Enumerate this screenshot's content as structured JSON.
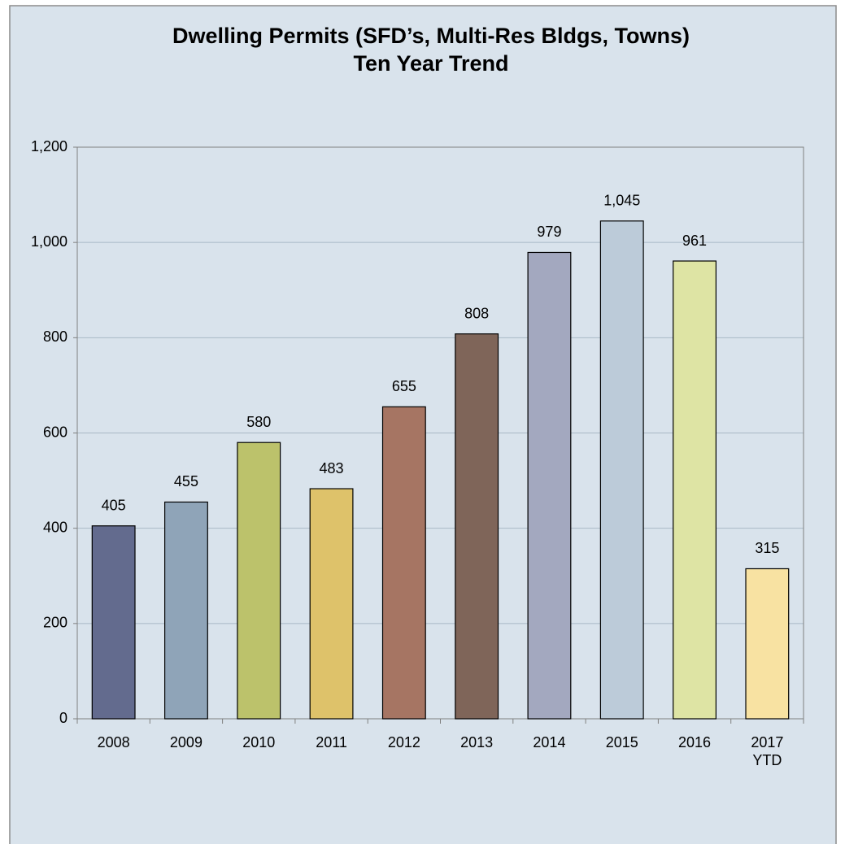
{
  "chart_data": {
    "type": "bar",
    "title": "Dwelling Permits (SFD’s, Multi-Res Bldgs, Towns)",
    "subtitle": "Ten Year Trend",
    "categories": [
      "2008",
      "2009",
      "2010",
      "2011",
      "2012",
      "2013",
      "2014",
      "2015",
      "2016",
      "2017 YTD"
    ],
    "values": [
      405,
      455,
      580,
      483,
      655,
      808,
      979,
      1045,
      961,
      315
    ],
    "value_labels": [
      "405",
      "455",
      "580",
      "483",
      "655",
      "808",
      "979",
      "1,045",
      "961",
      "315"
    ],
    "colors": [
      "#636b8e",
      "#8fa4b8",
      "#bcc26b",
      "#dec26a",
      "#a67563",
      "#7f6559",
      "#a3a8bf",
      "#bccbd9",
      "#dee4a4",
      "#f8e2a2"
    ],
    "ylim": [
      0,
      1200
    ],
    "yticks": [
      0,
      200,
      400,
      600,
      800,
      {
        "value": 1000,
        "label": "1,000"
      },
      {
        "value": 1200,
        "label": "1,200"
      }
    ],
    "grid": true
  }
}
